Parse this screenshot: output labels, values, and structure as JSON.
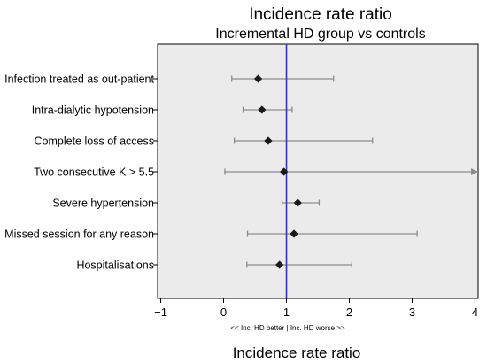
{
  "chart_data": {
    "type": "forest",
    "title": "Incidence rate ratio",
    "subtitle": "Incremental HD group vs controls",
    "xlabel": "Incidence rate ratio",
    "x_note": "<< Inc. HD better  |  Inc. HD worse >>",
    "xlim": [
      -1.05,
      4.05
    ],
    "xticks": [
      -1,
      0,
      1,
      2,
      3,
      4
    ],
    "xtick_labels": [
      "−1",
      "0",
      "1",
      "2",
      "3",
      "4"
    ],
    "reference_line": 1,
    "grid": false,
    "legend": "none",
    "rows": [
      {
        "label": "Infection treated as out-patient",
        "estimate": 0.55,
        "lower": 0.13,
        "upper": 1.75,
        "upper_arrow": false
      },
      {
        "label": "Intra-dialytic hypotension",
        "estimate": 0.61,
        "lower": 0.31,
        "upper": 1.09,
        "upper_arrow": false
      },
      {
        "label": "Complete loss of access",
        "estimate": 0.71,
        "lower": 0.17,
        "upper": 2.37,
        "upper_arrow": false
      },
      {
        "label": "Two consecutive K > 5.5",
        "estimate": 0.96,
        "lower": 0.02,
        "upper": 4.05,
        "upper_arrow": true
      },
      {
        "label": "Severe hypertension",
        "estimate": 1.18,
        "lower": 0.93,
        "upper": 1.52,
        "upper_arrow": false
      },
      {
        "label": "Missed session for any reason",
        "estimate": 1.12,
        "lower": 0.38,
        "upper": 3.08,
        "upper_arrow": false
      },
      {
        "label": "Hospitalisations",
        "estimate": 0.89,
        "lower": 0.37,
        "upper": 2.04,
        "upper_arrow": false
      }
    ],
    "colors": {
      "plot_background": "#ebebeb",
      "reference_line": "#3333cc",
      "ci_line": "#8c8c8c",
      "marker": "#1a1a1a"
    }
  }
}
